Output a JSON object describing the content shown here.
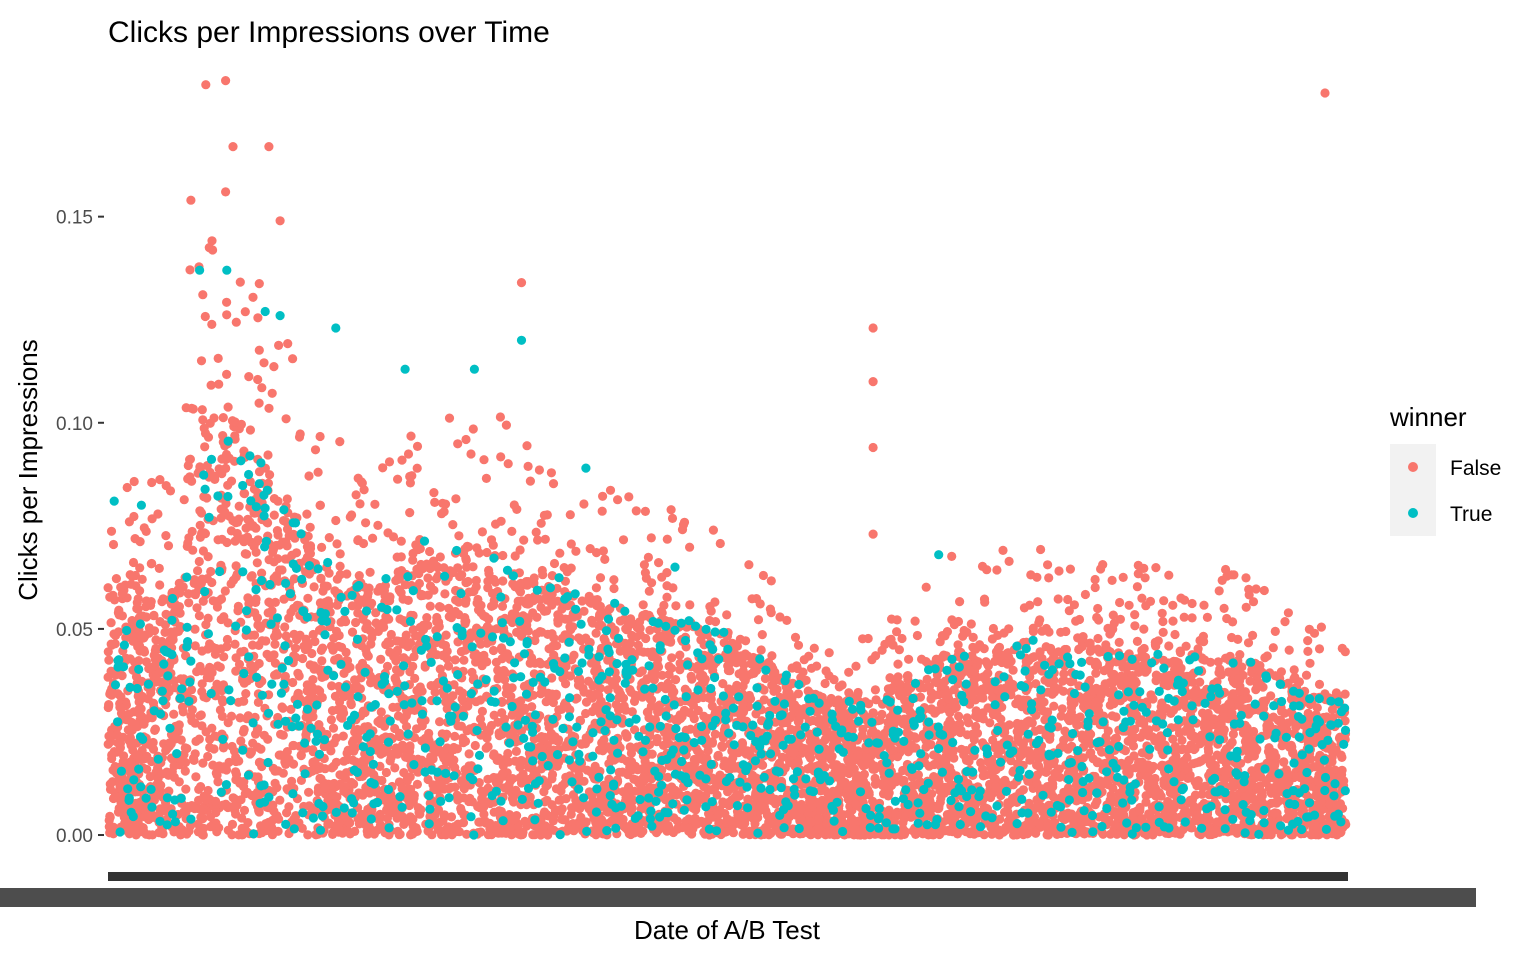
{
  "chart_data": {
    "type": "scatter",
    "title": "Clicks per Impressions over Time",
    "xlabel": "Date of A/B Test",
    "ylabel": "Clicks per Impressions",
    "ylim": [
      -0.008,
      0.188
    ],
    "y_ticks": [
      0.0,
      0.05,
      0.1,
      0.15
    ],
    "y_tick_labels": [
      "0.00",
      "0.05",
      "0.10",
      "0.15"
    ],
    "x_tick_labels": "dense, overlapping (illegible)",
    "grid": false,
    "legend": {
      "title": "winner",
      "position": "right",
      "entries": [
        {
          "label": "False",
          "color": "#F8766D"
        },
        {
          "label": "True",
          "color": "#00BFC4"
        }
      ]
    },
    "series": [
      {
        "name": "False",
        "color": "#F8766D",
        "notable_points": [
          {
            "x_frac": 0.079,
            "y": 0.182
          },
          {
            "x_frac": 0.095,
            "y": 0.183
          },
          {
            "x_frac": 0.101,
            "y": 0.167
          },
          {
            "x_frac": 0.13,
            "y": 0.167
          },
          {
            "x_frac": 0.067,
            "y": 0.154
          },
          {
            "x_frac": 0.095,
            "y": 0.156
          },
          {
            "x_frac": 0.139,
            "y": 0.149
          },
          {
            "x_frac": 0.334,
            "y": 0.134
          },
          {
            "x_frac": 0.618,
            "y": 0.123
          },
          {
            "x_frac": 0.618,
            "y": 0.11
          },
          {
            "x_frac": 0.618,
            "y": 0.094
          },
          {
            "x_frac": 0.618,
            "y": 0.073
          },
          {
            "x_frac": 0.983,
            "y": 0.18
          }
        ]
      },
      {
        "name": "True",
        "color": "#00BFC4",
        "notable_points": [
          {
            "x_frac": 0.005,
            "y": 0.081
          },
          {
            "x_frac": 0.027,
            "y": 0.08
          },
          {
            "x_frac": 0.074,
            "y": 0.137
          },
          {
            "x_frac": 0.096,
            "y": 0.137
          },
          {
            "x_frac": 0.127,
            "y": 0.127
          },
          {
            "x_frac": 0.139,
            "y": 0.126
          },
          {
            "x_frac": 0.184,
            "y": 0.123
          },
          {
            "x_frac": 0.24,
            "y": 0.113
          },
          {
            "x_frac": 0.296,
            "y": 0.113
          },
          {
            "x_frac": 0.334,
            "y": 0.12
          },
          {
            "x_frac": 0.386,
            "y": 0.089
          },
          {
            "x_frac": 0.671,
            "y": 0.068
          },
          {
            "x_frac": 0.458,
            "y": 0.065
          }
        ]
      }
    ]
  }
}
